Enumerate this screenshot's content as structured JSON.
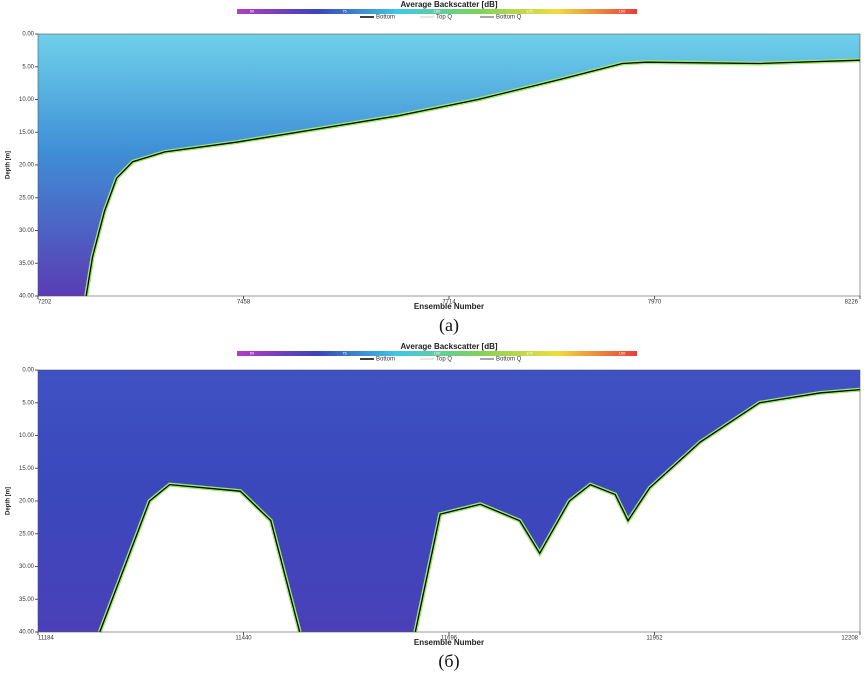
{
  "chart_data": [
    {
      "type": "echogram",
      "title": "Average Backscatter [dB]",
      "x_label": "Ensemble Number",
      "y_label": "Depth [m]",
      "caption": "(a)",
      "legend": [
        "Bottom",
        "Top Q",
        "Bottom Q"
      ],
      "colorbar": {
        "ticks": [
          50,
          75,
          100,
          125,
          150
        ],
        "colors": [
          "#b43cc8",
          "#3a44b8",
          "#3ec8e6",
          "#7ed25a",
          "#f0dc3c",
          "#e83c3c"
        ]
      },
      "xlim": [
        7202,
        8226
      ],
      "xticks": [
        7202,
        7458,
        7714,
        7970,
        8226
      ],
      "ylim": [
        0,
        40
      ],
      "yticks": [
        {
          "value": 0,
          "label": "0.00"
        },
        {
          "value": 5,
          "label": "5.00"
        },
        {
          "value": 10,
          "label": "10.00"
        },
        {
          "value": 15,
          "label": "15.00"
        },
        {
          "value": 20,
          "label": "20.00"
        },
        {
          "value": 25,
          "label": "25.00"
        },
        {
          "value": 30,
          "label": "30.00"
        },
        {
          "value": 35,
          "label": "35.00"
        },
        {
          "value": 40,
          "label": "40.00"
        }
      ],
      "series": [
        {
          "name": "Bottom",
          "color": "#000000",
          "x": [
            7262,
            7270,
            7285,
            7300,
            7320,
            7360,
            7450,
            7550,
            7650,
            7750,
            7850,
            7930,
            7960,
            8100,
            8226
          ],
          "values": [
            40,
            34,
            27,
            22,
            19.5,
            18,
            16.5,
            14.5,
            12.5,
            10,
            7,
            4.5,
            4.3,
            4.5,
            4
          ]
        }
      ]
    },
    {
      "type": "echogram",
      "title": "Average Backscatter [dB]",
      "x_label": "Ensemble Number",
      "y_label": "Depth [m]",
      "caption": "(б)",
      "legend": [
        "Bottom",
        "Top Q",
        "Bottom Q"
      ],
      "colorbar": {
        "ticks": [
          50,
          75,
          100,
          125,
          150
        ],
        "colors": [
          "#b43cc8",
          "#3a44b8",
          "#3ec8e6",
          "#7ed25a",
          "#f0dc3c",
          "#e83c3c"
        ]
      },
      "xlim": [
        11184,
        12208
      ],
      "xticks": [
        11184,
        11440,
        11696,
        11952,
        12208
      ],
      "ylim": [
        0,
        40
      ],
      "yticks": [
        {
          "value": 0,
          "label": "0.00"
        },
        {
          "value": 5,
          "label": "5.00"
        },
        {
          "value": 10,
          "label": "10.00"
        },
        {
          "value": 15,
          "label": "15.00"
        },
        {
          "value": 20,
          "label": "20.00"
        },
        {
          "value": 25,
          "label": "25.00"
        },
        {
          "value": 30,
          "label": "30.00"
        },
        {
          "value": 35,
          "label": "35.00"
        },
        {
          "value": 40,
          "label": "40.00"
        }
      ],
      "series": [
        {
          "name": "Bottom",
          "color": "#000000",
          "x": [
            11261,
            11323,
            11348,
            11436,
            11474,
            11510,
            null,
            11654,
            11685,
            11735,
            11784,
            11809,
            11846,
            11872,
            11903,
            11919,
            11946,
            12009,
            12083,
            12158,
            12208
          ],
          "values": [
            40,
            20,
            17.5,
            18.5,
            23,
            40,
            null,
            40,
            22,
            20.5,
            23,
            28,
            20,
            17.5,
            19,
            23,
            18,
            11,
            5,
            3.5,
            3
          ]
        }
      ]
    }
  ]
}
